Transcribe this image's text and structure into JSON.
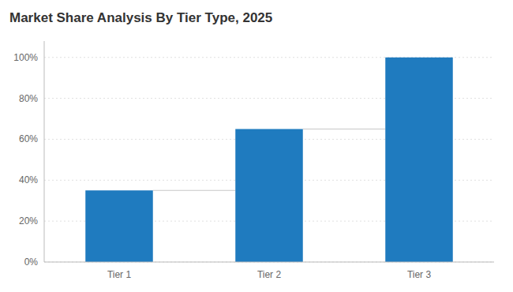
{
  "chart_data": {
    "type": "bar",
    "title": "Market Share Analysis By Tier Type, 2025",
    "categories": [
      "Tier 1",
      "Tier 2",
      "Tier 3"
    ],
    "values": [
      35,
      65,
      100
    ],
    "color": "#1f7bbf",
    "ylim": [
      0,
      108
    ],
    "yticks": [
      {
        "value": 0,
        "label": "0%"
      },
      {
        "value": 20,
        "label": "20%"
      },
      {
        "value": 40,
        "label": "40%"
      },
      {
        "value": 60,
        "label": "60%"
      },
      {
        "value": 80,
        "label": "80%"
      },
      {
        "value": 100,
        "label": "100%"
      }
    ],
    "grid": true
  }
}
